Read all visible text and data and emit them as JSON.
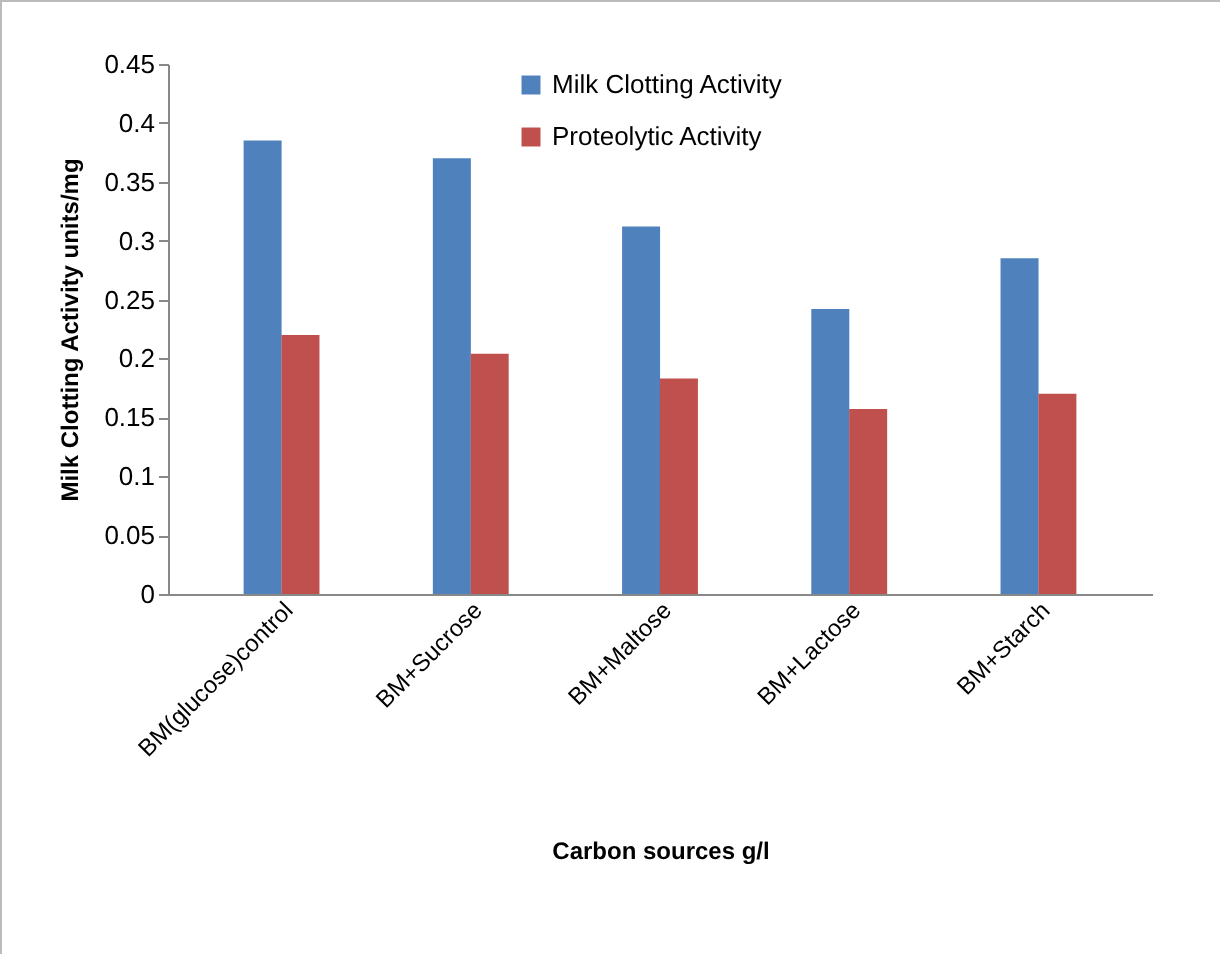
{
  "chart_data": {
    "type": "bar",
    "xlabel": "Carbon sources g/l",
    "ylabel": "Milk Clotting Activity units/mg",
    "categories": [
      "BM(glucose)control",
      "BM+Sucrose",
      "BM+Maltose",
      "BM+Lactose",
      "BM+Starch"
    ],
    "series": [
      {
        "name": "Milk Clotting Activity",
        "color": "#4f81bd",
        "values": [
          0.385,
          0.37,
          0.312,
          0.242,
          0.285
        ]
      },
      {
        "name": "Proteolytic Activity",
        "color": "#c0504d",
        "values": [
          0.22,
          0.204,
          0.183,
          0.157,
          0.17
        ]
      }
    ],
    "ylim": [
      0,
      0.45
    ],
    "yticks": [
      0,
      0.05,
      0.1,
      0.15,
      0.2,
      0.25,
      0.3,
      0.35,
      0.4,
      0.45
    ],
    "grid": false,
    "legend": "top"
  }
}
